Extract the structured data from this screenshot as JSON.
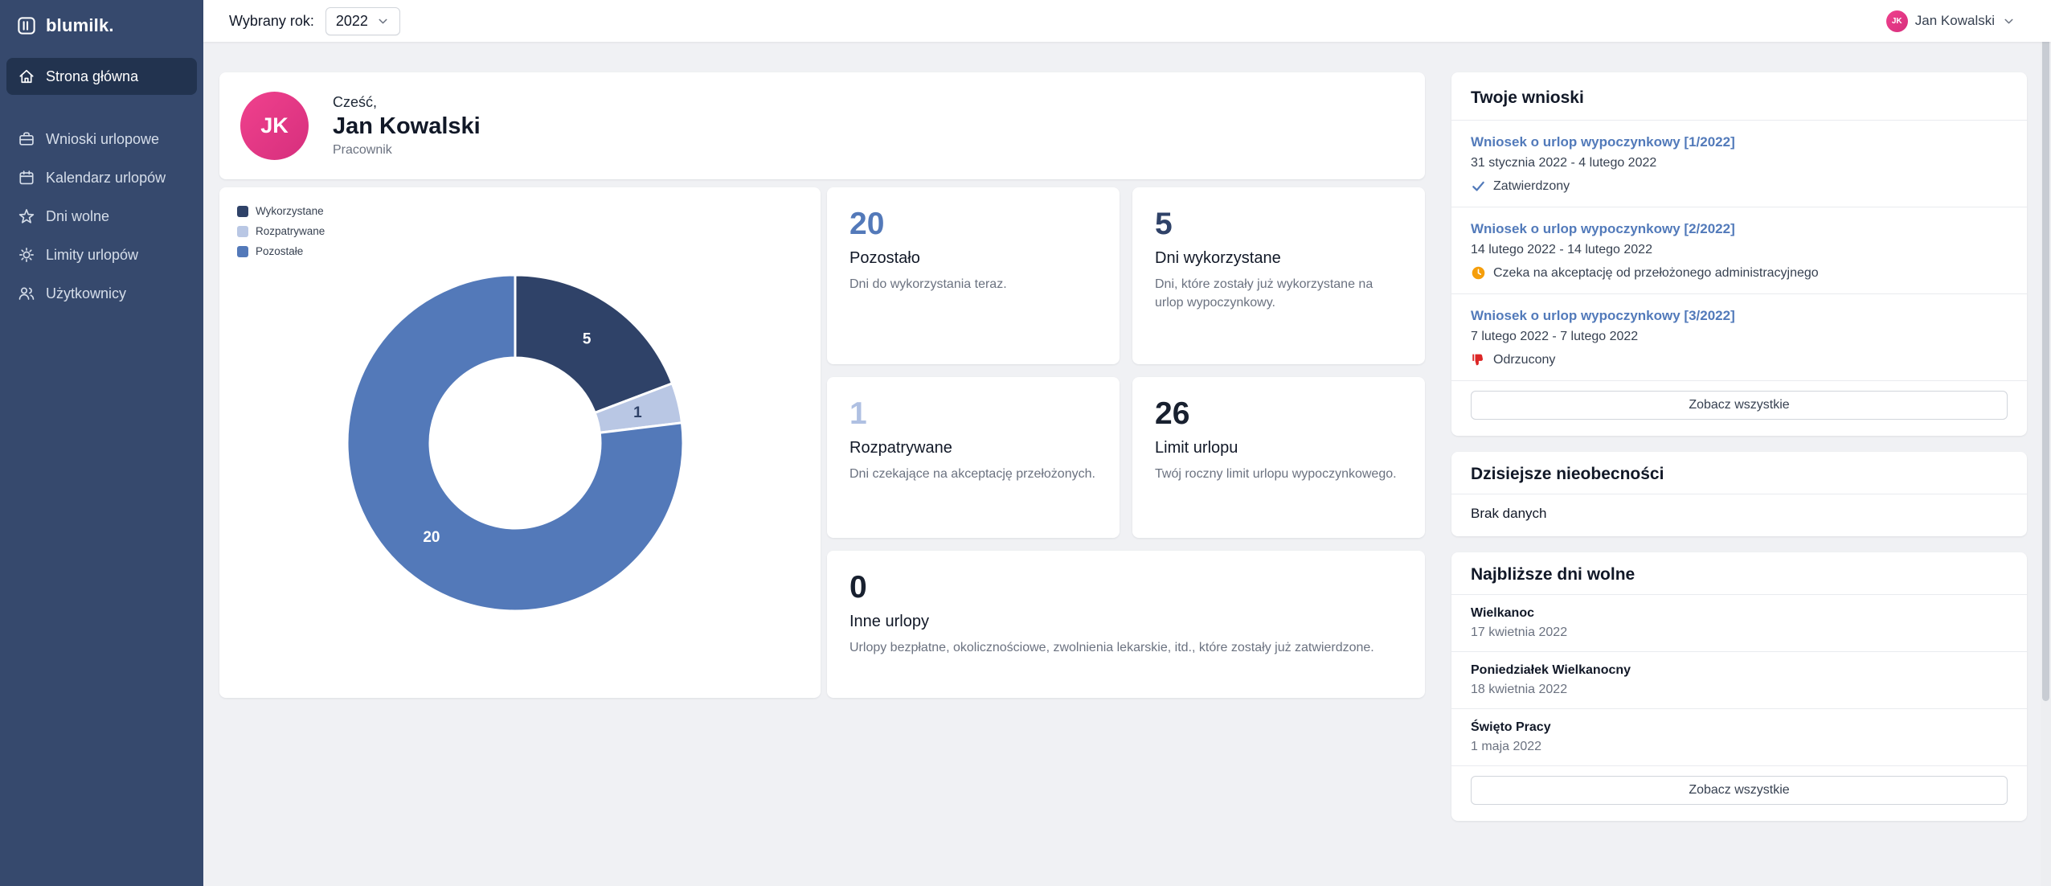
{
  "app": {
    "logo": "blumilk."
  },
  "sidebar": {
    "items": [
      {
        "label": "Strona główna",
        "icon": "home-icon",
        "active": true
      },
      {
        "label": "Wnioski urlopowe",
        "icon": "briefcase-icon",
        "active": false
      },
      {
        "label": "Kalendarz urlopów",
        "icon": "calendar-icon",
        "active": false
      },
      {
        "label": "Dni wolne",
        "icon": "star-icon",
        "active": false
      },
      {
        "label": "Limity urlopów",
        "icon": "sun-icon",
        "active": false
      },
      {
        "label": "Użytkownicy",
        "icon": "users-icon",
        "active": false
      }
    ]
  },
  "topbar": {
    "year_label": "Wybrany rok:",
    "year_value": "2022",
    "user_initials": "JK",
    "user_name": "Jan Kowalski"
  },
  "welcome": {
    "avatar_initials": "JK",
    "greeting": "Cześć,",
    "name": "Jan Kowalski",
    "role": "Pracownik"
  },
  "chart_data": {
    "type": "pie",
    "donut": true,
    "legend_position": "top-left",
    "start_angle_deg": 0,
    "total": 26,
    "segments": [
      {
        "label": "Wykorzystane",
        "value": 5,
        "color": "#2F4268",
        "label_color": "#FFFFFF"
      },
      {
        "label": "Rozpatrywane",
        "value": 1,
        "color": "#B9C7E4",
        "label_color": "#2F4268"
      },
      {
        "label": "Pozostałe",
        "value": 20,
        "color": "#5379B9",
        "label_color": "#FFFFFF"
      }
    ]
  },
  "stats": [
    {
      "value": "20",
      "label": "Pozostało",
      "description": "Dni do wykorzystania teraz.",
      "color": "#5379B9"
    },
    {
      "value": "5",
      "label": "Dni wykorzystane",
      "description": "Dni, które zostały już wykorzystane na urlop wypoczynkowy.",
      "color": "#2F4268"
    },
    {
      "value": "1",
      "label": "Rozpatrywane",
      "description": "Dni czekające na akceptację przełożonych.",
      "color": "#AFC0E2"
    },
    {
      "value": "26",
      "label": "Limit urlopu",
      "description": "Twój roczny limit urlopu wypoczynkowego.",
      "color": "#18202F"
    },
    {
      "value": "0",
      "label": "Inne urlopy",
      "description": "Urlopy bezpłatne, okolicznościowe, zwolnienia lekarskie, itd., które zostały już zatwierdzone.",
      "color": "#18202F"
    }
  ],
  "requests": {
    "title": "Twoje wnioski",
    "see_all": "Zobacz wszystkie",
    "items": [
      {
        "link": "Wniosek o urlop wypoczynkowy [1/2022]",
        "dates": "31 stycznia 2022 - 4 lutego 2022",
        "status": "Zatwierdzony",
        "icon": "check-icon",
        "status_color": "#527ABA"
      },
      {
        "link": "Wniosek o urlop wypoczynkowy [2/2022]",
        "dates": "14 lutego 2022 - 14 lutego 2022",
        "status": "Czeka na akceptację od przełożonego administracyjnego",
        "icon": "clock-icon",
        "status_color": "#F59E0B"
      },
      {
        "link": "Wniosek o urlop wypoczynkowy [3/2022]",
        "dates": "7 lutego 2022 - 7 lutego 2022",
        "status": "Odrzucony",
        "icon": "thumbs-down-icon",
        "status_color": "#DC2626"
      }
    ]
  },
  "absences": {
    "title": "Dzisiejsze nieobecności",
    "empty": "Brak danych"
  },
  "holidays": {
    "title": "Najbliższe dni wolne",
    "see_all": "Zobacz wszystkie",
    "items": [
      {
        "name": "Wielkanoc",
        "date": "17 kwietnia 2022"
      },
      {
        "name": "Poniedziałek Wielkanocny",
        "date": "18 kwietnia 2022"
      },
      {
        "name": "Święto Pracy",
        "date": "1 maja 2022"
      }
    ]
  }
}
